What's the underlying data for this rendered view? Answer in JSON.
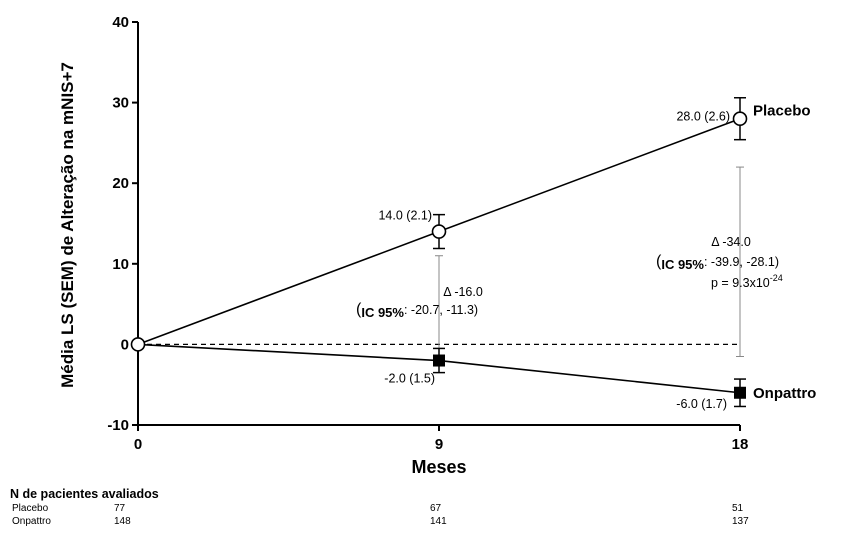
{
  "chart_data": {
    "type": "line",
    "ylabel": "Média LS (SEM) de Alteração na mNIS+7",
    "xlabel": "Meses",
    "x": [
      0,
      9,
      18
    ],
    "xticks": [
      "0",
      "9",
      "18"
    ],
    "ylim": [
      -10,
      40
    ],
    "yticks": [
      "-10",
      "0",
      "10",
      "20",
      "30",
      "40"
    ],
    "ytick_values": [
      -10,
      0,
      10,
      20,
      30,
      40
    ],
    "reference_line": 0,
    "grid": false,
    "series": [
      {
        "name": "Placebo",
        "values": [
          0,
          14.0,
          28.0
        ],
        "sem": [
          0,
          2.1,
          2.6
        ],
        "point_labels": [
          "",
          "14.0 (2.1)",
          "28.0 (2.6)"
        ],
        "marker": "open-circle",
        "color": "#000000"
      },
      {
        "name": "Onpattro",
        "values": [
          0,
          -2.0,
          -6.0
        ],
        "sem": [
          0,
          1.5,
          1.7
        ],
        "point_labels": [
          "",
          "-2.0 (1.5)",
          "-6.0 (1.7)"
        ],
        "marker": "filled-square",
        "color": "#000000"
      }
    ],
    "annotations": [
      {
        "x": 9,
        "bracket": [
          -0.5,
          11
        ],
        "line1": "Δ -16.0",
        "ci_label": "IC 95%",
        "ci_value": ": -20.7, -11.3)"
      },
      {
        "x": 18,
        "bracket": [
          -1.5,
          22
        ],
        "line1": "Δ -34.0",
        "ci_label": "IC 95%",
        "ci_value": ": -39.9, -28.1)",
        "p_prefix": "p = 9.3x10",
        "p_exponent": "-24"
      }
    ]
  },
  "patients": {
    "title": "N de pacientes avaliados",
    "rows": [
      {
        "label": "Placebo",
        "values": [
          "77",
          "67",
          "51"
        ]
      },
      {
        "label": "Onpattro",
        "values": [
          "148",
          "141",
          "137"
        ]
      }
    ]
  }
}
